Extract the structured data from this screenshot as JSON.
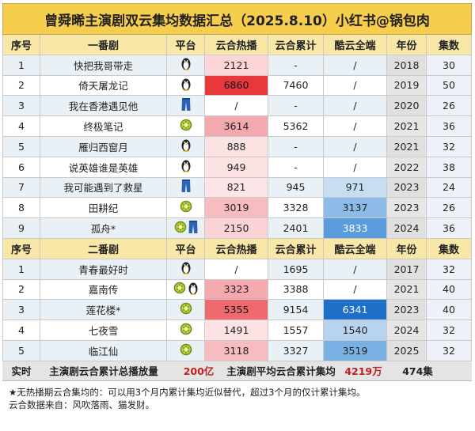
{
  "title": "曾舜晞主演剧双云集均数据汇总（2025.8.10）小红书@锅包肉",
  "headers1": [
    "序号",
    "一番剧",
    "平台",
    "云合热播",
    "云合累计",
    "酷云全端",
    "年份",
    "集数"
  ],
  "headers2": [
    "序号",
    "二番剧",
    "平台",
    "云合热播",
    "云合累计",
    "酷云全端",
    "年份",
    "集数"
  ],
  "rows1": [
    {
      "no": "1",
      "name": "快把我哥带走",
      "platforms": [
        "penguin-icon"
      ],
      "hot": "2121",
      "cum": "-",
      "ku": "/",
      "year": "2018",
      "eps": "30",
      "hot_bg": "#fbd5d8",
      "ku_bg": ""
    },
    {
      "no": "2",
      "name": "倚天屠龙记",
      "platforms": [
        "penguin-icon"
      ],
      "hot": "6860",
      "cum": "7460",
      "ku": "/",
      "year": "2019",
      "eps": "50",
      "hot_bg": "#e8383b",
      "ku_bg": ""
    },
    {
      "no": "3",
      "name": "我在香港遇见他",
      "platforms": [
        "jeans-icon"
      ],
      "hot": "/",
      "cum": "-",
      "ku": "/",
      "year": "2020",
      "eps": "26",
      "hot_bg": "#ffffff",
      "ku_bg": ""
    },
    {
      "no": "4",
      "name": "终极笔记",
      "platforms": [
        "kiwi-icon"
      ],
      "hot": "3614",
      "cum": "5362",
      "ku": "/",
      "year": "2021",
      "eps": "36",
      "hot_bg": "#f4a9ae",
      "ku_bg": ""
    },
    {
      "no": "5",
      "name": "雁归西窗月",
      "platforms": [
        "penguin-icon"
      ],
      "hot": "888",
      "cum": "-",
      "ku": "/",
      "year": "2021",
      "eps": "32",
      "hot_bg": "#fde2e4",
      "ku_bg": ""
    },
    {
      "no": "6",
      "name": "说英雄谁是英雄",
      "platforms": [
        "penguin-icon"
      ],
      "hot": "949",
      "cum": "-",
      "ku": "/",
      "year": "2022",
      "eps": "38",
      "hot_bg": "#fde2e4",
      "ku_bg": ""
    },
    {
      "no": "7",
      "name": "我可能遇到了救星",
      "platforms": [
        "jeans-icon"
      ],
      "hot": "821",
      "cum": "945",
      "ku": "971",
      "year": "2023",
      "eps": "24",
      "hot_bg": "#fde4e6",
      "ku_bg": "#c7ddf2"
    },
    {
      "no": "8",
      "name": "田耕纪",
      "platforms": [
        "kiwi-icon"
      ],
      "hot": "3019",
      "cum": "3328",
      "ku": "3137",
      "year": "2023",
      "eps": "26",
      "hot_bg": "#f7bcc0",
      "ku_bg": "#8bbbe6"
    },
    {
      "no": "9",
      "name": "孤舟*",
      "platforms": [
        "kiwi-icon",
        "jeans-icon"
      ],
      "hot": "2150",
      "cum": "2401",
      "ku": "3833",
      "year": "2024",
      "eps": "36",
      "hot_bg": "#fbd3d6",
      "ku_bg": "#5a9bdc"
    }
  ],
  "rows2": [
    {
      "no": "1",
      "name": "青春最好时",
      "platforms": [
        "penguin-icon"
      ],
      "hot": "/",
      "cum": "1695",
      "ku": "/",
      "year": "2017",
      "eps": "32",
      "hot_bg": "#ffffff",
      "ku_bg": ""
    },
    {
      "no": "2",
      "name": "嘉南传",
      "platforms": [
        "kiwi-icon",
        "penguin-icon"
      ],
      "hot": "3323",
      "cum": "3388",
      "ku": "/",
      "year": "2021",
      "eps": "40",
      "hot_bg": "#f4a9ae",
      "ku_bg": ""
    },
    {
      "no": "3",
      "name": "莲花楼*",
      "platforms": [
        "kiwi-icon"
      ],
      "hot": "5355",
      "cum": "9154",
      "ku": "6341",
      "year": "2023",
      "eps": "40",
      "hot_bg": "#ee6a6f",
      "ku_bg": "#1e6fc8"
    },
    {
      "no": "4",
      "name": "七夜雪",
      "platforms": [
        "kiwi-icon"
      ],
      "hot": "1491",
      "cum": "1557",
      "ku": "1540",
      "year": "2024",
      "eps": "32",
      "hot_bg": "#fde2e4",
      "ku_bg": "#b8d3ef"
    },
    {
      "no": "5",
      "name": "临江仙",
      "platforms": [
        "kiwi-icon"
      ],
      "hot": "3118",
      "cum": "3327",
      "ku": "3519",
      "year": "2025",
      "eps": "32",
      "hot_bg": "#f7bcc0",
      "ku_bg": "#7ab0e3"
    }
  ],
  "footer": {
    "label": "实时",
    "total_label": "主演剧云合累计总播放量",
    "total_value": "200亿",
    "avg_label": "主演剧平均云合累计集均",
    "avg_value": "4219万",
    "eps_total": "474集"
  },
  "notes": [
    "★无热播期云合集均的：可以用3个月内累计集均近似替代，超过3个月的仅计累计集均。",
    "云合数据来自：风吹落雨、猫发财。"
  ]
}
